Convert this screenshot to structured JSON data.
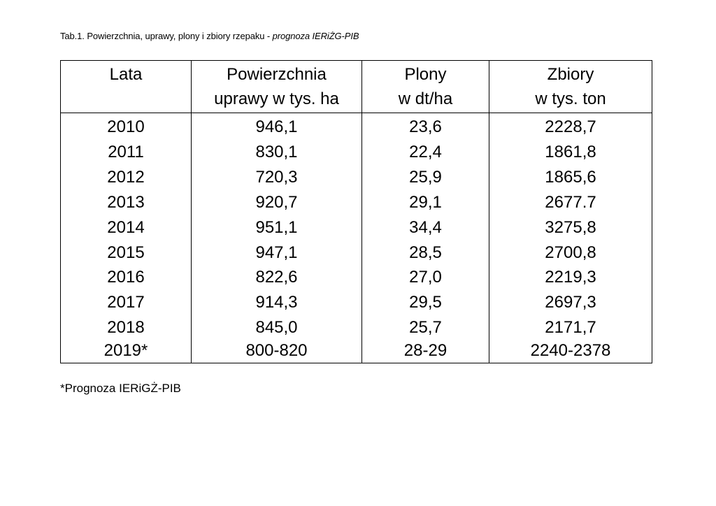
{
  "caption": {
    "text": "Tab.1. Powierzchnia, uprawy, plony i zbiory rzepaku - ",
    "italic": "prognoza IERiŻG-PIB"
  },
  "table": {
    "headers": [
      {
        "line1": "Lata",
        "line2": ""
      },
      {
        "line1": "Powierzchnia",
        "line2": "uprawy w tys. ha"
      },
      {
        "line1": "Plony",
        "line2": "w dt/ha"
      },
      {
        "line1": "Zbiory",
        "line2": "w tys. ton"
      }
    ],
    "rows": [
      [
        "2010",
        "946,1",
        "23,6",
        "2228,7"
      ],
      [
        "2011",
        "830,1",
        "22,4",
        "1861,8"
      ],
      [
        "2012",
        "720,3",
        "25,9",
        "1865,6"
      ],
      [
        "2013",
        "920,7",
        "29,1",
        "2677.7"
      ],
      [
        "2014",
        "951,1",
        "34,4",
        "3275,8"
      ],
      [
        "2015",
        "947,1",
        "28,5",
        "2700,8"
      ],
      [
        "2016",
        "822,6",
        "27,0",
        "2219,3"
      ],
      [
        "2017",
        "914,3",
        "29,5",
        "2697,3"
      ],
      [
        "2018",
        "845,0",
        "25,7",
        "2171,7"
      ],
      [
        "2019*",
        "800-820",
        "28-29",
        "2240-2378"
      ]
    ]
  },
  "footnote": "*Prognoza IERiGŻ-PIB"
}
